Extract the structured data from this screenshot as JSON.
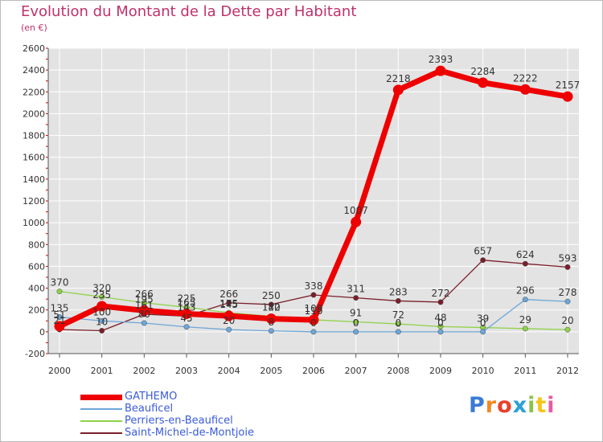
{
  "title": "Evolution du Montant de la Dette par Habitant",
  "unit_label": "(en €)",
  "logo": {
    "text": "Proxiti",
    "letter_colors": [
      "#3a7bd5",
      "#f08a24",
      "#e8402a",
      "#2aa0d8",
      "#8bc34a",
      "#f5c518",
      "#e85aa0"
    ]
  },
  "chart_data": {
    "type": "line",
    "title": "Evolution du Montant de la Dette par Habitant",
    "ylabel": "(en €)",
    "xlabel": "",
    "x": [
      "2000",
      "2001",
      "2002",
      "2003",
      "2004",
      "2005",
      "2006",
      "2007",
      "2008",
      "2009",
      "2010",
      "2011",
      "2012"
    ],
    "ylim": [
      -200,
      2600
    ],
    "yticks": [
      -200,
      0,
      200,
      400,
      600,
      800,
      1000,
      1200,
      1400,
      1600,
      1800,
      2000,
      2200,
      2400,
      2600
    ],
    "grid": true,
    "legend_position": "bottom-left",
    "series": [
      {
        "name": "Saint-Michel-de-Montjoie",
        "color": "#7a1f2b",
        "values": [
          21,
          10,
          161,
          143,
          266,
          250,
          338,
          311,
          283,
          272,
          657,
          624,
          593
        ],
        "labels": [
          "21",
          "10",
          "161",
          "143",
          "266",
          "250",
          "338",
          "311",
          "283",
          "272",
          "657",
          "624",
          "593"
        ]
      },
      {
        "name": "Perriers-en-Beauficel",
        "color": "#8fd24a",
        "values": [
          370,
          320,
          266,
          225,
          175,
          142,
          110,
          91,
          72,
          48,
          39,
          29,
          20
        ],
        "labels": [
          "370",
          "320",
          "266",
          "225",
          "175",
          "142",
          "110",
          "91",
          "72",
          "48",
          "39",
          "29",
          "20"
        ]
      },
      {
        "name": "Beauficel",
        "color": "#6ea6d8",
        "values": [
          135,
          100,
          80,
          45,
          20,
          8,
          0,
          0,
          0,
          0,
          0,
          296,
          278
        ],
        "labels": [
          "135",
          "100",
          "80",
          "45",
          "20",
          "8",
          "0",
          "0",
          "0",
          "0",
          "0",
          "296",
          "278"
        ]
      },
      {
        "name": "GATHEMO",
        "color": "#ee0000",
        "values": [
          51,
          235,
          195,
          165,
          145,
          120,
          109,
          1007,
          2218,
          2393,
          2284,
          2222,
          2157
        ],
        "labels": [
          "51",
          "235",
          "195",
          "165",
          "145",
          "120",
          "109",
          "1007",
          "2218",
          "2393",
          "2284",
          "2222",
          "2157"
        ]
      }
    ],
    "legend": [
      "GATHEMO",
      "Beauficel",
      "Perriers-en-Beauficel",
      "Saint-Michel-de-Montjoie"
    ]
  }
}
